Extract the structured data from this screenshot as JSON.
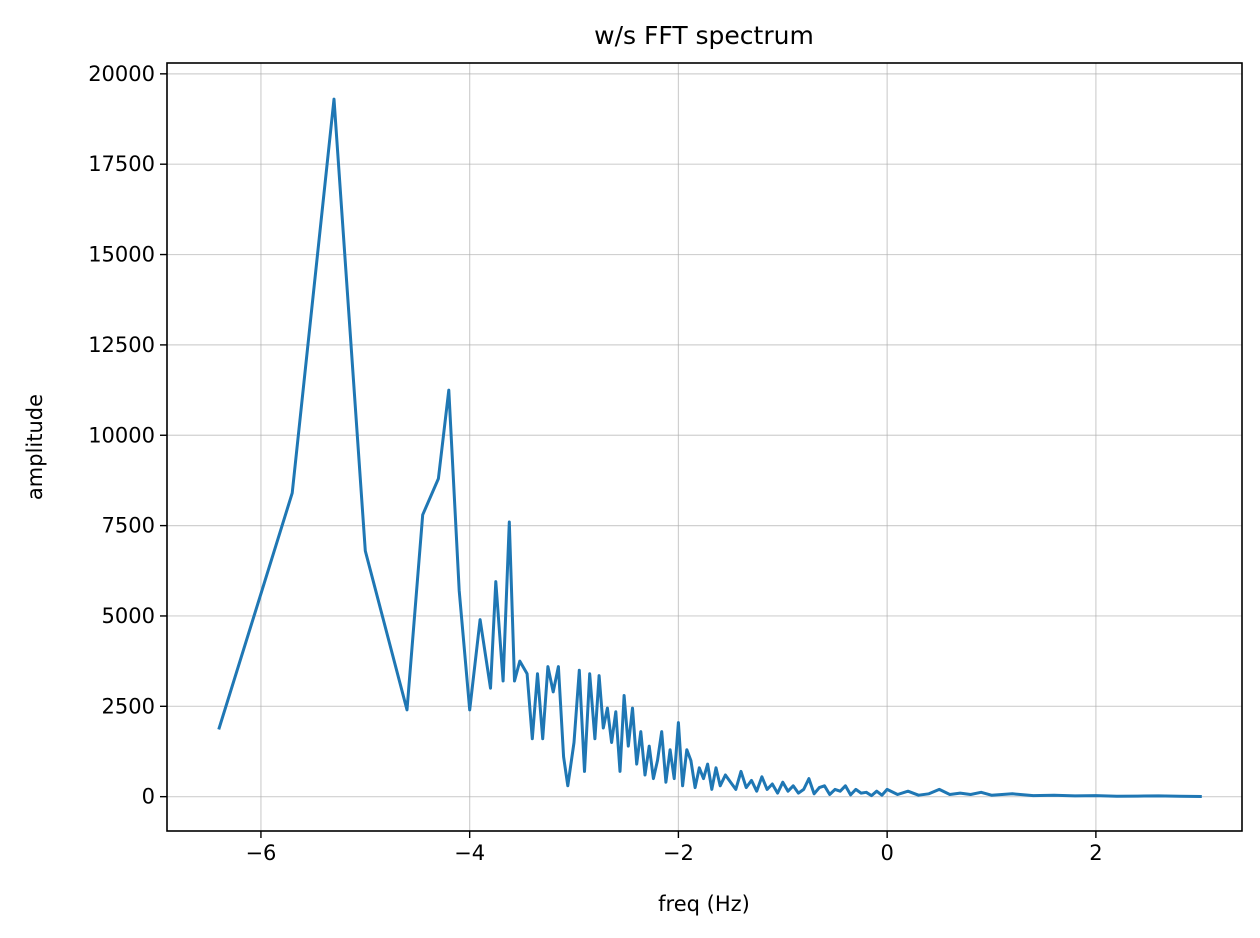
{
  "chart_data": {
    "type": "line",
    "title": "w/s FFT spectrum",
    "xlabel": "freq (Hz)",
    "ylabel": "amplitude",
    "xlim": [
      -6.9,
      3.4
    ],
    "ylim": [
      -950,
      20300
    ],
    "grid": true,
    "xticks": [
      -6,
      -4,
      -2,
      0,
      2
    ],
    "xtick_labels": [
      "−6",
      "−4",
      "−2",
      "0",
      "2"
    ],
    "yticks": [
      0,
      2500,
      5000,
      7500,
      10000,
      12500,
      15000,
      17500,
      20000
    ],
    "ytick_labels": [
      "0",
      "2500",
      "5000",
      "7500",
      "10000",
      "12500",
      "15000",
      "17500",
      "20000"
    ],
    "series": [
      {
        "name": "w/s FFT",
        "color": "#1f77b4",
        "x": [
          -6.4,
          -5.7,
          -5.3,
          -5.0,
          -4.6,
          -4.45,
          -4.3,
          -4.2,
          -4.1,
          -4.0,
          -3.9,
          -3.8,
          -3.75,
          -3.68,
          -3.62,
          -3.57,
          -3.52,
          -3.45,
          -3.4,
          -3.35,
          -3.3,
          -3.25,
          -3.2,
          -3.15,
          -3.1,
          -3.06,
          -3.0,
          -2.95,
          -2.9,
          -2.85,
          -2.8,
          -2.76,
          -2.72,
          -2.68,
          -2.64,
          -2.6,
          -2.56,
          -2.52,
          -2.48,
          -2.44,
          -2.4,
          -2.36,
          -2.32,
          -2.28,
          -2.24,
          -2.2,
          -2.16,
          -2.12,
          -2.08,
          -2.04,
          -2.0,
          -1.96,
          -1.92,
          -1.88,
          -1.84,
          -1.8,
          -1.76,
          -1.72,
          -1.68,
          -1.64,
          -1.6,
          -1.55,
          -1.5,
          -1.45,
          -1.4,
          -1.35,
          -1.3,
          -1.25,
          -1.2,
          -1.15,
          -1.1,
          -1.05,
          -1.0,
          -0.95,
          -0.9,
          -0.85,
          -0.8,
          -0.75,
          -0.7,
          -0.65,
          -0.6,
          -0.55,
          -0.5,
          -0.45,
          -0.4,
          -0.35,
          -0.3,
          -0.25,
          -0.2,
          -0.15,
          -0.1,
          -0.05,
          0.0,
          0.1,
          0.2,
          0.3,
          0.4,
          0.5,
          0.6,
          0.7,
          0.8,
          0.9,
          1.0,
          1.2,
          1.4,
          1.6,
          1.8,
          2.0,
          2.2,
          2.4,
          2.6,
          2.8,
          3.0
        ],
        "y": [
          1900,
          8400,
          19300,
          6800,
          2400,
          7800,
          8800,
          11250,
          5700,
          2400,
          4900,
          3000,
          5950,
          3200,
          7600,
          3200,
          3750,
          3400,
          1600,
          3400,
          1600,
          3600,
          2900,
          3600,
          1100,
          300,
          1500,
          3500,
          700,
          3400,
          1600,
          3350,
          1900,
          2450,
          1500,
          2350,
          700,
          2800,
          1400,
          2450,
          900,
          1800,
          600,
          1400,
          500,
          1000,
          1800,
          400,
          1300,
          500,
          2050,
          300,
          1300,
          1000,
          250,
          800,
          500,
          900,
          200,
          800,
          300,
          600,
          400,
          200,
          700,
          250,
          450,
          150,
          550,
          200,
          350,
          100,
          400,
          150,
          300,
          100,
          200,
          500,
          80,
          250,
          300,
          60,
          200,
          150,
          300,
          50,
          200,
          100,
          120,
          30,
          150,
          40,
          200,
          60,
          150,
          40,
          80,
          200,
          60,
          100,
          60,
          120,
          40,
          80,
          30,
          40,
          20,
          30,
          10,
          15,
          20,
          10,
          5
        ]
      }
    ]
  }
}
